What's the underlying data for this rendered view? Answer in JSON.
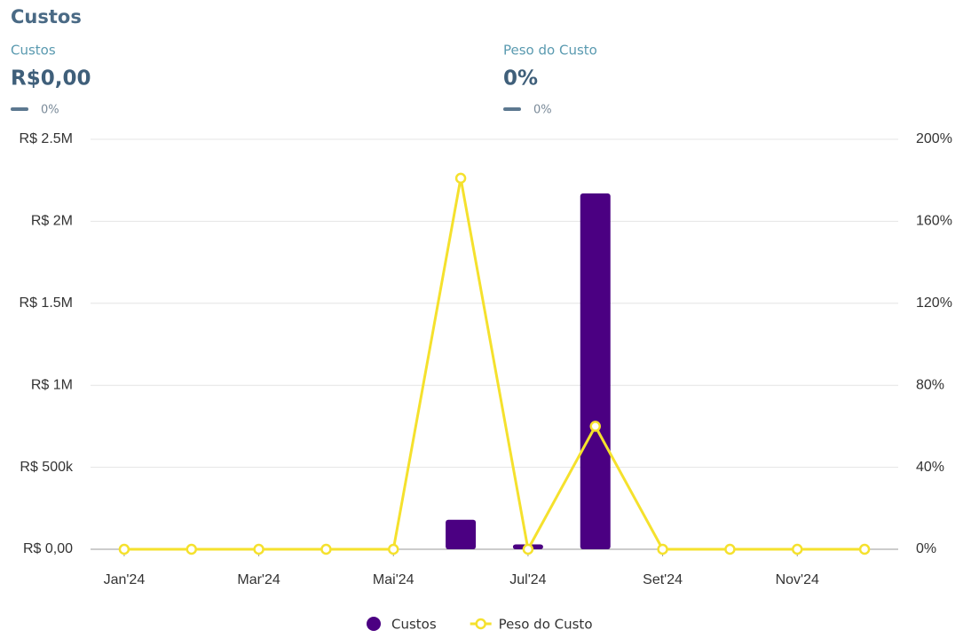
{
  "header": {
    "title": "Custos",
    "kpis": [
      {
        "label": "Custos",
        "value": "R$0,00",
        "change": "0%"
      },
      {
        "label": "Peso do Custo",
        "value": "0%",
        "change": "0%"
      }
    ]
  },
  "chart_data": {
    "type": "bar",
    "categories": [
      "Jan'24",
      null,
      "Mar'24",
      null,
      "Mai'24",
      null,
      "Jul'24",
      null,
      "Set'24",
      null,
      "Nov'24",
      null
    ],
    "series": [
      {
        "name": "Custos",
        "type": "bar",
        "color": "#4b0082",
        "values": [
          0,
          0,
          0,
          0,
          0,
          180000,
          30000,
          2170000,
          0,
          0,
          0,
          0
        ]
      },
      {
        "name": "Peso do Custo",
        "type": "line",
        "axis": "y2",
        "color": "#f5e12d",
        "values": [
          0,
          0,
          0,
          0,
          0,
          181,
          0,
          60,
          0,
          0,
          0,
          0
        ]
      }
    ],
    "ylim": [
      0,
      2500000
    ],
    "yticks": [
      {
        "value": 0,
        "label": "R$ 0,00"
      },
      {
        "value": 500000,
        "label": "R$ 500k"
      },
      {
        "value": 1000000,
        "label": "R$ 1M"
      },
      {
        "value": 1500000,
        "label": "R$ 1.5M"
      },
      {
        "value": 2000000,
        "label": "R$ 2M"
      },
      {
        "value": 2500000,
        "label": "R$ 2.5M"
      }
    ],
    "y2lim": [
      0,
      200
    ],
    "y2ticks": [
      {
        "value": 0,
        "label": "0%"
      },
      {
        "value": 40,
        "label": "40%"
      },
      {
        "value": 80,
        "label": "80%"
      },
      {
        "value": 120,
        "label": "120%"
      },
      {
        "value": 160,
        "label": "160%"
      },
      {
        "value": 200,
        "label": "200%"
      }
    ],
    "grid": true
  }
}
